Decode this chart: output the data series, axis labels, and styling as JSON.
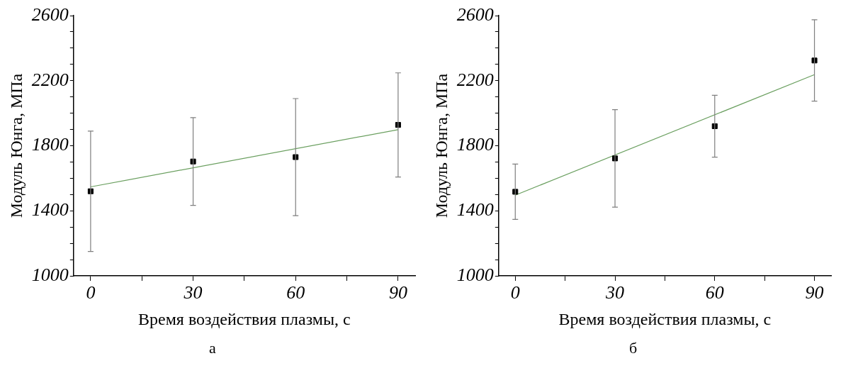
{
  "chart_data": [
    {
      "type": "scatter",
      "xlabel": "Время воздействия плазмы, с",
      "ylabel": "Модуль Юнга, МПа",
      "annotations": [
        "а"
      ],
      "xlim": [
        -5,
        95
      ],
      "xticks": [
        0,
        {
          "value": 15,
          "label": null
        },
        30,
        {
          "value": 45,
          "label": null
        },
        60,
        {
          "value": 75,
          "label": null
        },
        90
      ],
      "ylim": [
        1000,
        2600
      ],
      "yticks": [
        1000,
        {
          "value": 1100,
          "label": null
        },
        {
          "value": 1200,
          "label": null
        },
        {
          "value": 1300,
          "label": null
        },
        1400,
        {
          "value": 1500,
          "label": null
        },
        {
          "value": 1600,
          "label": null
        },
        {
          "value": 1700,
          "label": null
        },
        1800,
        {
          "value": 1900,
          "label": null
        },
        {
          "value": 2000,
          "label": null
        },
        {
          "value": 2100,
          "label": null
        },
        2200,
        {
          "value": 2300,
          "label": null
        },
        {
          "value": 2400,
          "label": null
        },
        {
          "value": 2500,
          "label": null
        },
        2600
      ],
      "grid": false,
      "legend": false,
      "series": [
        {
          "x": [
            0,
            30,
            60,
            90
          ],
          "values": [
            1520,
            1703,
            1730,
            1928
          ],
          "errors": [
            370,
            270,
            360,
            320
          ],
          "color": "#000000",
          "marker": "square"
        },
        {
          "type": "line",
          "x": [
            0,
            90
          ],
          "values": [
            1547,
            1899
          ],
          "color": "#6a9f5f",
          "marker": "none"
        }
      ]
    },
    {
      "type": "scatter",
      "xlabel": "Время воздействия плазмы, с",
      "ylabel": "Модуль Юнга, МПа",
      "annotations": [
        "б"
      ],
      "xlim": [
        -5,
        95
      ],
      "xticks": [
        0,
        {
          "value": 15,
          "label": null
        },
        30,
        {
          "value": 45,
          "label": null
        },
        60,
        {
          "value": 75,
          "label": null
        },
        90
      ],
      "ylim": [
        1000,
        2600
      ],
      "yticks": [
        1000,
        {
          "value": 1100,
          "label": null
        },
        {
          "value": 1200,
          "label": null
        },
        {
          "value": 1300,
          "label": null
        },
        1400,
        {
          "value": 1500,
          "label": null
        },
        {
          "value": 1600,
          "label": null
        },
        {
          "value": 1700,
          "label": null
        },
        1800,
        {
          "value": 1900,
          "label": null
        },
        {
          "value": 2000,
          "label": null
        },
        {
          "value": 2100,
          "label": null
        },
        2200,
        {
          "value": 2300,
          "label": null
        },
        {
          "value": 2400,
          "label": null
        },
        {
          "value": 2500,
          "label": null
        },
        2600
      ],
      "grid": false,
      "legend": false,
      "series": [
        {
          "x": [
            0,
            30,
            60,
            90
          ],
          "values": [
            1517,
            1722,
            1920,
            2324
          ],
          "errors": [
            170,
            300,
            190,
            250
          ],
          "color": "#000000",
          "marker": "square"
        },
        {
          "type": "line",
          "x": [
            0,
            90
          ],
          "values": [
            1496,
            2237
          ],
          "color": "#6a9f5f",
          "marker": "none"
        }
      ]
    }
  ]
}
